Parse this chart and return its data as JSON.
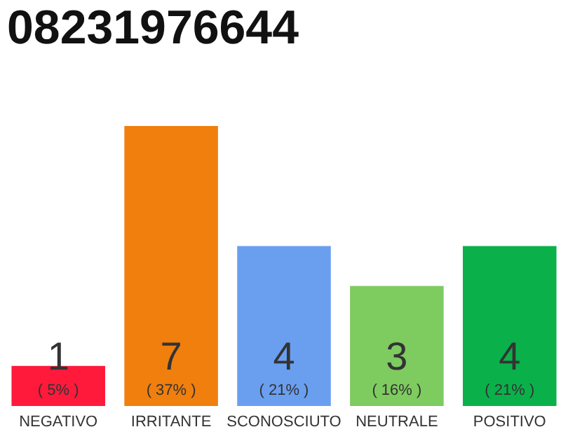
{
  "chart_data": {
    "type": "bar",
    "title": "08231976644",
    "categories": [
      "NEGATIVO",
      "IRRITANTE",
      "SCONOSCIUTO",
      "NEUTRALE",
      "POSITIVO"
    ],
    "values": [
      1,
      7,
      4,
      3,
      4
    ],
    "colors": [
      "#ff1a3c",
      "#f07f0e",
      "#6a9ff0",
      "#7ecb60",
      "#0ab14a"
    ],
    "data_labels": true,
    "grid": false,
    "legend": false,
    "annotations": [
      "( 5% )",
      "( 37% )",
      "( 21% )",
      "( 16% )",
      "( 21% )"
    ]
  }
}
